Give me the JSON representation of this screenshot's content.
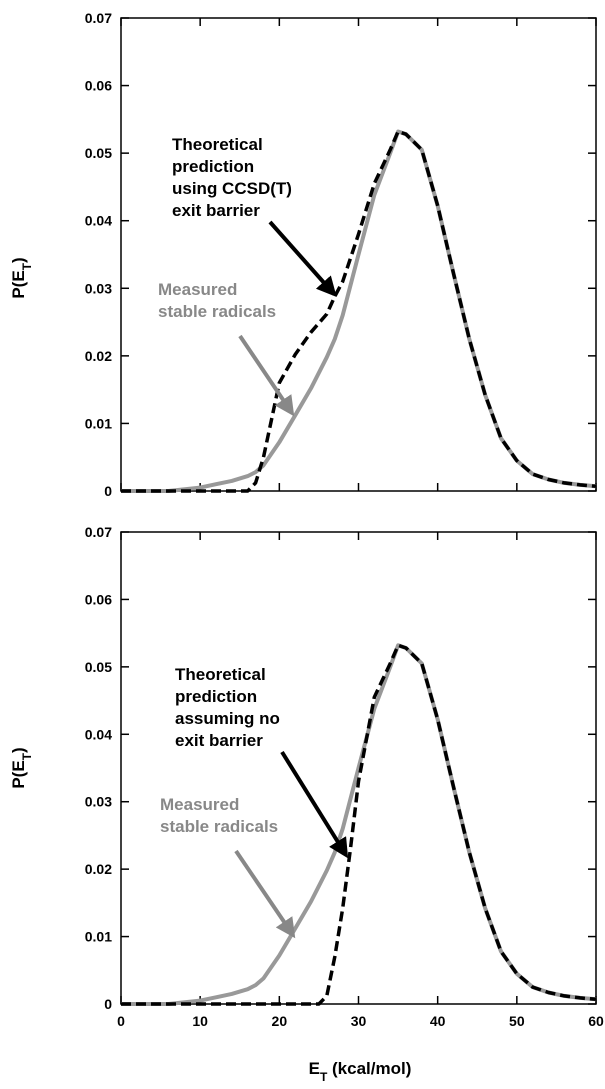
{
  "colors": {
    "measured": "#999999",
    "theory": "#000000",
    "annotation_gray": "#888888"
  },
  "chart_data": [
    {
      "type": "line",
      "xlim": [
        0,
        60
      ],
      "ylim": [
        0,
        0.07
      ],
      "x_ticks": [
        "0",
        "10",
        "20",
        "30",
        "40",
        "50",
        "60"
      ],
      "show_x_tick_labels": false,
      "y_ticks": [
        "0",
        "0.01",
        "0.02",
        "0.03",
        "0.04",
        "0.05",
        "0.06",
        "0.07"
      ],
      "ylabel_main": "P(E",
      "ylabel_sub": "T",
      "ylabel_close": ")",
      "annotations": [
        {
          "lines": [
            "Theoretical",
            "prediction",
            "using CCSD(T)",
            "exit barrier"
          ],
          "color": "black"
        },
        {
          "lines": [
            "Measured",
            "stable radicals"
          ],
          "color": "gray"
        }
      ],
      "series": [
        {
          "style": "solid-gray",
          "x": [
            0,
            6,
            10,
            12,
            14,
            16,
            17,
            18,
            20,
            22,
            24,
            26,
            27,
            28,
            30,
            32,
            34,
            35,
            36,
            38,
            40,
            42,
            44,
            46,
            48,
            50,
            52,
            54,
            56,
            58,
            60
          ],
          "y": [
            0,
            0,
            0.0005,
            0.001,
            0.0015,
            0.0022,
            0.0028,
            0.0038,
            0.0072,
            0.0112,
            0.0152,
            0.0198,
            0.0225,
            0.026,
            0.035,
            0.0438,
            0.05,
            0.0532,
            0.0528,
            0.0505,
            0.0422,
            0.0322,
            0.0225,
            0.0142,
            0.0078,
            0.0045,
            0.0025,
            0.0017,
            0.0012,
            0.0009,
            0.0007
          ]
        },
        {
          "style": "dashed-black",
          "x": [
            0,
            16,
            17,
            18,
            19,
            20,
            22,
            24,
            26,
            27,
            28,
            30,
            32,
            34,
            35,
            36,
            38,
            40,
            42,
            44,
            46,
            48,
            50,
            52,
            54,
            56,
            58,
            60
          ],
          "y": [
            0,
            0,
            0.0012,
            0.005,
            0.0105,
            0.016,
            0.0202,
            0.0235,
            0.0262,
            0.0288,
            0.031,
            0.038,
            0.0455,
            0.0505,
            0.0532,
            0.0528,
            0.0505,
            0.0422,
            0.0322,
            0.0225,
            0.0142,
            0.0078,
            0.0045,
            0.0025,
            0.0017,
            0.0012,
            0.0009,
            0.0007
          ]
        }
      ]
    },
    {
      "type": "line",
      "xlim": [
        0,
        60
      ],
      "ylim": [
        0,
        0.07
      ],
      "x_ticks": [
        "0",
        "10",
        "20",
        "30",
        "40",
        "50",
        "60"
      ],
      "show_x_tick_labels": true,
      "y_ticks": [
        "0",
        "0.01",
        "0.02",
        "0.03",
        "0.04",
        "0.05",
        "0.06",
        "0.07"
      ],
      "ylabel_main": "P(E",
      "ylabel_sub": "T",
      "ylabel_close": ")",
      "xlabel_main": "E",
      "xlabel_sub": "T",
      "xlabel_rest": " (kcal/mol)",
      "annotations": [
        {
          "lines": [
            "Theoretical",
            "prediction",
            "assuming no",
            "exit barrier"
          ],
          "color": "black"
        },
        {
          "lines": [
            "Measured",
            "stable radicals"
          ],
          "color": "gray"
        }
      ],
      "series": [
        {
          "style": "solid-gray",
          "x": [
            0,
            6,
            10,
            12,
            14,
            16,
            17,
            18,
            20,
            22,
            24,
            26,
            27,
            28,
            30,
            32,
            34,
            35,
            36,
            38,
            40,
            42,
            44,
            46,
            48,
            50,
            52,
            54,
            56,
            58,
            60
          ],
          "y": [
            0,
            0,
            0.0005,
            0.001,
            0.0015,
            0.0022,
            0.0028,
            0.0038,
            0.0072,
            0.0112,
            0.0152,
            0.0198,
            0.0225,
            0.026,
            0.035,
            0.0438,
            0.05,
            0.0532,
            0.0528,
            0.0505,
            0.0422,
            0.0322,
            0.0225,
            0.0142,
            0.0078,
            0.0045,
            0.0025,
            0.0017,
            0.0012,
            0.0009,
            0.0007
          ]
        },
        {
          "style": "dashed-black",
          "x": [
            0,
            25,
            26,
            27,
            28,
            29,
            30,
            32,
            34,
            35,
            36,
            38,
            40,
            42,
            44,
            46,
            48,
            50,
            52,
            54,
            56,
            58,
            60
          ],
          "y": [
            0,
            0,
            0.0012,
            0.007,
            0.0142,
            0.0232,
            0.033,
            0.0455,
            0.0505,
            0.0532,
            0.0528,
            0.0505,
            0.0422,
            0.0322,
            0.0225,
            0.0142,
            0.0078,
            0.0045,
            0.0025,
            0.0017,
            0.0012,
            0.0009,
            0.0007
          ]
        }
      ]
    }
  ]
}
